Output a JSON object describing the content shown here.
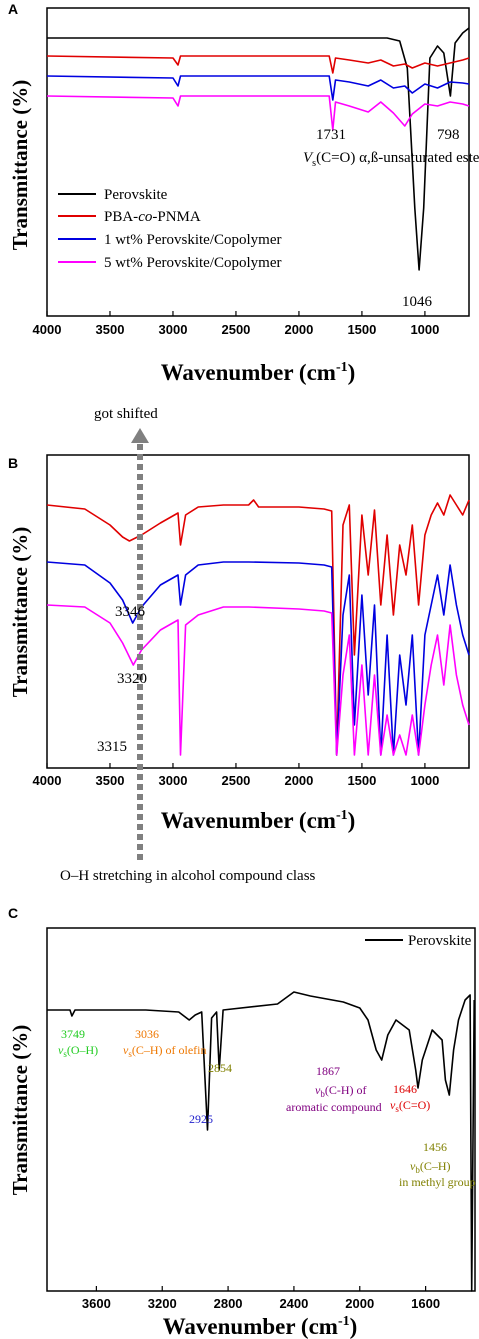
{
  "chart_data": [
    {
      "panel": "A",
      "type": "line",
      "xlabel": "Wavenumber (cm",
      "xlabel_sup": "-1",
      "xlabel_close": ")",
      "ylabel": "Transmittance (%)",
      "x_ticks": [
        "4000",
        "3500",
        "3000",
        "2500",
        "2000",
        "1500",
        "1000"
      ],
      "xlim": [
        4000,
        650
      ],
      "legend_position": "bottom-left",
      "series": [
        {
          "name": "Perovskite",
          "color": "#000000",
          "values": [
            [
              4000,
              30
            ],
            [
              3000,
              30
            ],
            [
              1300,
              30
            ],
            [
              1200,
              33
            ],
            [
              1140,
              60
            ],
            [
              1080,
              200
            ],
            [
              1046,
              262
            ],
            [
              1010,
              200
            ],
            [
              960,
              50
            ],
            [
              900,
              38
            ],
            [
              850,
              45
            ],
            [
              798,
              88
            ],
            [
              760,
              35
            ],
            [
              700,
              25
            ],
            [
              650,
              20
            ]
          ]
        },
        {
          "name": "PBA-co-PNMA",
          "color": "#e00000",
          "values": [
            [
              4000,
              48
            ],
            [
              3000,
              50
            ],
            [
              2960,
              57
            ],
            [
              2940,
              48
            ],
            [
              1760,
              48
            ],
            [
              1731,
              65
            ],
            [
              1710,
              50
            ],
            [
              1600,
              52
            ],
            [
              1450,
              55
            ],
            [
              1350,
              52
            ],
            [
              1250,
              58
            ],
            [
              1160,
              56
            ],
            [
              1100,
              60
            ],
            [
              1000,
              55
            ],
            [
              900,
              58
            ],
            [
              800,
              55
            ],
            [
              700,
              52
            ],
            [
              650,
              50
            ]
          ]
        },
        {
          "name": "1 wt% Perovskite/Copolymer",
          "color": "#0000e0",
          "values": [
            [
              4000,
              68
            ],
            [
              3000,
              70
            ],
            [
              2960,
              78
            ],
            [
              2940,
              68
            ],
            [
              1760,
              68
            ],
            [
              1731,
              92
            ],
            [
              1710,
              72
            ],
            [
              1600,
              74
            ],
            [
              1450,
              78
            ],
            [
              1350,
              72
            ],
            [
              1250,
              80
            ],
            [
              1160,
              78
            ],
            [
              1100,
              85
            ],
            [
              1000,
              76
            ],
            [
              900,
              80
            ],
            [
              800,
              74
            ],
            [
              700,
              75
            ],
            [
              650,
              76
            ]
          ]
        },
        {
          "name": "5 wt% Perovskite/Copolymer",
          "color": "#ff00ff",
          "values": [
            [
              4000,
              88
            ],
            [
              3000,
              90
            ],
            [
              2960,
              98
            ],
            [
              2940,
              88
            ],
            [
              1760,
              88
            ],
            [
              1731,
              122
            ],
            [
              1710,
              94
            ],
            [
              1600,
              98
            ],
            [
              1450,
              104
            ],
            [
              1350,
              94
            ],
            [
              1250,
              105
            ],
            [
              1160,
              118
            ],
            [
              1100,
              106
            ],
            [
              1000,
              96
            ],
            [
              900,
              98
            ],
            [
              800,
              94
            ],
            [
              700,
              96
            ],
            [
              650,
              98
            ]
          ]
        }
      ],
      "annotations": [
        {
          "text": "1731",
          "x": 1731
        },
        {
          "text": "798",
          "x": 798
        },
        {
          "text": "1046",
          "x": 1046
        },
        {
          "text_prefix": "V",
          "text_sub": "s",
          "text_suffix": "(C=O) α,ß-unsaturated ester"
        }
      ]
    },
    {
      "panel": "B",
      "type": "line",
      "xlabel": "Wavenumber (cm",
      "xlabel_sup": "-1",
      "xlabel_close": ")",
      "ylabel": "Transmittance (%)",
      "x_ticks": [
        "4000",
        "3500",
        "3000",
        "2500",
        "2000",
        "1500",
        "1000"
      ],
      "xlim": [
        4000,
        650
      ],
      "top_note": "got shifted",
      "bottom_note": "O–H stretching in alcohol compound class",
      "series": [
        {
          "name": "",
          "color": "#e00000",
          "values": [
            [
              4000,
              50
            ],
            [
              3700,
              54
            ],
            [
              3500,
              70
            ],
            [
              3400,
              82
            ],
            [
              3346,
              86
            ],
            [
              3250,
              80
            ],
            [
              3100,
              68
            ],
            [
              2960,
              58
            ],
            [
              2940,
              90
            ],
            [
              2900,
              60
            ],
            [
              2800,
              52
            ],
            [
              2600,
              50
            ],
            [
              2400,
              50
            ],
            [
              2360,
              45
            ],
            [
              2320,
              52
            ],
            [
              2000,
              52
            ],
            [
              1800,
              54
            ],
            [
              1740,
              56
            ],
            [
              1700,
              300
            ],
            [
              1650,
              70
            ],
            [
              1600,
              50
            ],
            [
              1560,
              200
            ],
            [
              1500,
              60
            ],
            [
              1450,
              120
            ],
            [
              1400,
              55
            ],
            [
              1350,
              150
            ],
            [
              1300,
              80
            ],
            [
              1250,
              160
            ],
            [
              1200,
              90
            ],
            [
              1150,
              120
            ],
            [
              1100,
              70
            ],
            [
              1050,
              150
            ],
            [
              1000,
              80
            ],
            [
              950,
              60
            ],
            [
              900,
              48
            ],
            [
              850,
              60
            ],
            [
              800,
              40
            ],
            [
              750,
              50
            ],
            [
              700,
              60
            ],
            [
              650,
              45
            ]
          ]
        },
        {
          "name": "",
          "color": "#0000e0",
          "values": [
            [
              4000,
              107
            ],
            [
              3700,
              110
            ],
            [
              3500,
              128
            ],
            [
              3400,
              145
            ],
            [
              3320,
              168
            ],
            [
              3250,
              152
            ],
            [
              3100,
              130
            ],
            [
              2960,
              120
            ],
            [
              2940,
              150
            ],
            [
              2900,
              120
            ],
            [
              2800,
              110
            ],
            [
              2600,
              107
            ],
            [
              2400,
              107
            ],
            [
              2000,
              108
            ],
            [
              1800,
              110
            ],
            [
              1740,
              112
            ],
            [
              1700,
              300
            ],
            [
              1650,
              160
            ],
            [
              1600,
              120
            ],
            [
              1560,
              270
            ],
            [
              1500,
              140
            ],
            [
              1450,
              240
            ],
            [
              1400,
              150
            ],
            [
              1350,
              300
            ],
            [
              1300,
              180
            ],
            [
              1250,
              300
            ],
            [
              1200,
              200
            ],
            [
              1150,
              250
            ],
            [
              1100,
              180
            ],
            [
              1050,
              300
            ],
            [
              1000,
              180
            ],
            [
              950,
              150
            ],
            [
              900,
              120
            ],
            [
              850,
              160
            ],
            [
              800,
              110
            ],
            [
              750,
              150
            ],
            [
              700,
              180
            ],
            [
              650,
              200
            ]
          ]
        },
        {
          "name": "",
          "color": "#ff00ff",
          "values": [
            [
              4000,
              150
            ],
            [
              3700,
              152
            ],
            [
              3500,
              168
            ],
            [
              3400,
              188
            ],
            [
              3315,
              210
            ],
            [
              3250,
              195
            ],
            [
              3100,
              175
            ],
            [
              2960,
              165
            ],
            [
              2940,
              300
            ],
            [
              2900,
              170
            ],
            [
              2800,
              160
            ],
            [
              2600,
              152
            ],
            [
              2400,
              152
            ],
            [
              2000,
              154
            ],
            [
              1800,
              156
            ],
            [
              1740,
              158
            ],
            [
              1700,
              300
            ],
            [
              1650,
              220
            ],
            [
              1600,
              180
            ],
            [
              1560,
              300
            ],
            [
              1500,
              210
            ],
            [
              1450,
              300
            ],
            [
              1400,
              220
            ],
            [
              1350,
              300
            ],
            [
              1300,
              260
            ],
            [
              1250,
              300
            ],
            [
              1200,
              280
            ],
            [
              1150,
              300
            ],
            [
              1100,
              260
            ],
            [
              1050,
              300
            ],
            [
              1000,
              250
            ],
            [
              950,
              210
            ],
            [
              900,
              180
            ],
            [
              850,
              230
            ],
            [
              800,
              170
            ],
            [
              750,
              220
            ],
            [
              700,
              250
            ],
            [
              650,
              270
            ]
          ]
        }
      ],
      "annotations": [
        {
          "text": "3346",
          "x": 3346
        },
        {
          "text": "3320",
          "x": 3320
        },
        {
          "text": "3315",
          "x": 3315
        }
      ]
    },
    {
      "panel": "C",
      "type": "line",
      "xlabel": "Wavenumber (cm",
      "xlabel_sup": "-1",
      "xlabel_close": ")",
      "ylabel": "Transmittance (%)",
      "x_ticks": [
        "3600",
        "3200",
        "2800",
        "2400",
        "2000",
        "1600"
      ],
      "xlim": [
        3900,
        1300
      ],
      "legend_position": "top-right",
      "series": [
        {
          "name": "Perovskite",
          "color": "#000000",
          "values": [
            [
              3900,
              70
            ],
            [
              3760,
              70
            ],
            [
              3749,
              76
            ],
            [
              3730,
              70
            ],
            [
              3300,
              70
            ],
            [
              3100,
              72
            ],
            [
              3036,
              80
            ],
            [
              3000,
              75
            ],
            [
              2960,
              72
            ],
            [
              2925,
              190
            ],
            [
              2900,
              78
            ],
            [
              2870,
              72
            ],
            [
              2854,
              130
            ],
            [
              2830,
              70
            ],
            [
              2500,
              64
            ],
            [
              2400,
              52
            ],
            [
              2300,
              56
            ],
            [
              2100,
              62
            ],
            [
              2000,
              68
            ],
            [
              1950,
              80
            ],
            [
              1900,
              110
            ],
            [
              1867,
              120
            ],
            [
              1830,
              95
            ],
            [
              1780,
              80
            ],
            [
              1700,
              90
            ],
            [
              1660,
              130
            ],
            [
              1646,
              148
            ],
            [
              1620,
              120
            ],
            [
              1560,
              90
            ],
            [
              1500,
              100
            ],
            [
              1480,
              140
            ],
            [
              1456,
              155
            ],
            [
              1430,
              110
            ],
            [
              1400,
              80
            ],
            [
              1360,
              60
            ],
            [
              1330,
              55
            ],
            [
              1320,
              380
            ],
            [
              1305,
              60
            ]
          ]
        }
      ],
      "annotations": [
        {
          "text": "3749",
          "color": "#22cc22",
          "x": 3749
        },
        {
          "text": "3036",
          "color": "#ee7700",
          "x": 3036
        },
        {
          "text": "2854",
          "color": "#808000",
          "x": 2854
        },
        {
          "text": "2925",
          "color": "#2222cc",
          "x": 2925
        },
        {
          "text": "1867",
          "color": "#800080",
          "x": 1867
        },
        {
          "text": "1646",
          "color": "#dd0000",
          "x": 1646
        },
        {
          "text": "1456",
          "color": "#808000",
          "x": 1456
        },
        {
          "text_prefix": "v",
          "text_sub": "s",
          "text_suffix": "(O–H)",
          "color": "#22cc22"
        },
        {
          "text_prefix": "v",
          "text_sub": "s",
          "text_suffix": "(C–H) of olefin",
          "color": "#ee7700"
        },
        {
          "text_prefix": "v",
          "text_sub": "b",
          "text_suffix": "(C-H) of",
          "color": "#800080"
        },
        {
          "text": "aromatic compound",
          "color": "#800080"
        },
        {
          "text_prefix": "v",
          "text_sub": "s",
          "text_suffix": "(C=O)",
          "color": "#dd0000"
        },
        {
          "text_prefix": "v",
          "text_sub": "b",
          "text_suffix": "(C–H)",
          "color": "#808000"
        },
        {
          "text": "in methyl group",
          "color": "#808000"
        }
      ]
    }
  ]
}
